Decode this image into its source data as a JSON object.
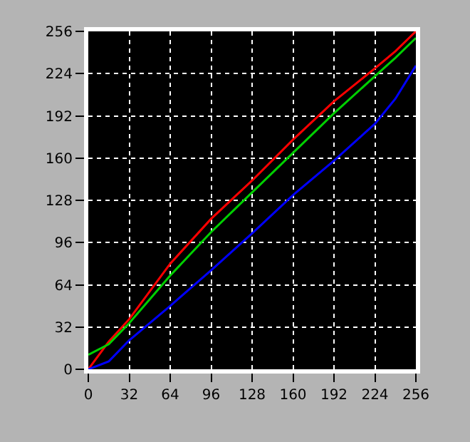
{
  "chart_data": {
    "type": "line",
    "x": [
      0,
      16,
      32,
      64,
      96,
      128,
      160,
      192,
      224,
      240,
      256
    ],
    "series": [
      {
        "color": "#ff0000",
        "values": [
          0,
          21,
          38,
          80,
          114,
          143,
          174,
          203,
          228,
          241,
          256
        ]
      },
      {
        "color": "#00d000",
        "values": [
          11,
          19,
          35,
          71,
          104,
          134,
          164,
          194,
          222,
          236,
          251
        ]
      },
      {
        "color": "#0000ff",
        "values": [
          0,
          6,
          22,
          48,
          75,
          103,
          132,
          158,
          186,
          205,
          230
        ]
      }
    ],
    "xlim": [
      0,
      256
    ],
    "ylim": [
      0,
      256
    ],
    "xticks": [
      0,
      32,
      64,
      96,
      128,
      160,
      192,
      224,
      256
    ],
    "yticks": [
      0,
      32,
      64,
      96,
      128,
      160,
      192,
      224,
      256
    ],
    "grid": true,
    "marker": "none",
    "line_style": "solid"
  }
}
